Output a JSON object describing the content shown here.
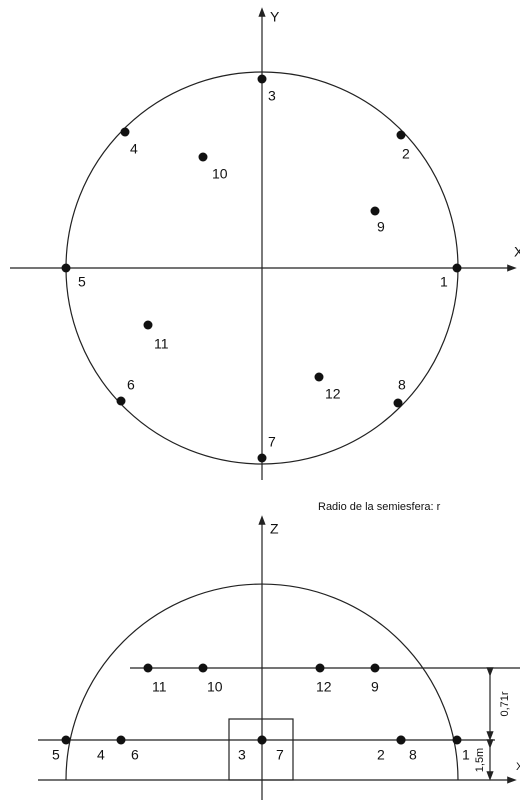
{
  "top_view": {
    "axis_x": "X",
    "axis_y": "Y",
    "points": [
      "1",
      "2",
      "3",
      "4",
      "5",
      "6",
      "7",
      "8",
      "9",
      "10",
      "11",
      "12"
    ]
  },
  "caption": "Radio de la semiesfera: r",
  "side_view": {
    "axis_z": "Z",
    "axis_x": "X",
    "points": [
      "1",
      "2",
      "3",
      "4",
      "5",
      "6",
      "7",
      "8",
      "9",
      "10",
      "11",
      "12"
    ],
    "dimensions": [
      "0,71r",
      "1,5m"
    ]
  }
}
